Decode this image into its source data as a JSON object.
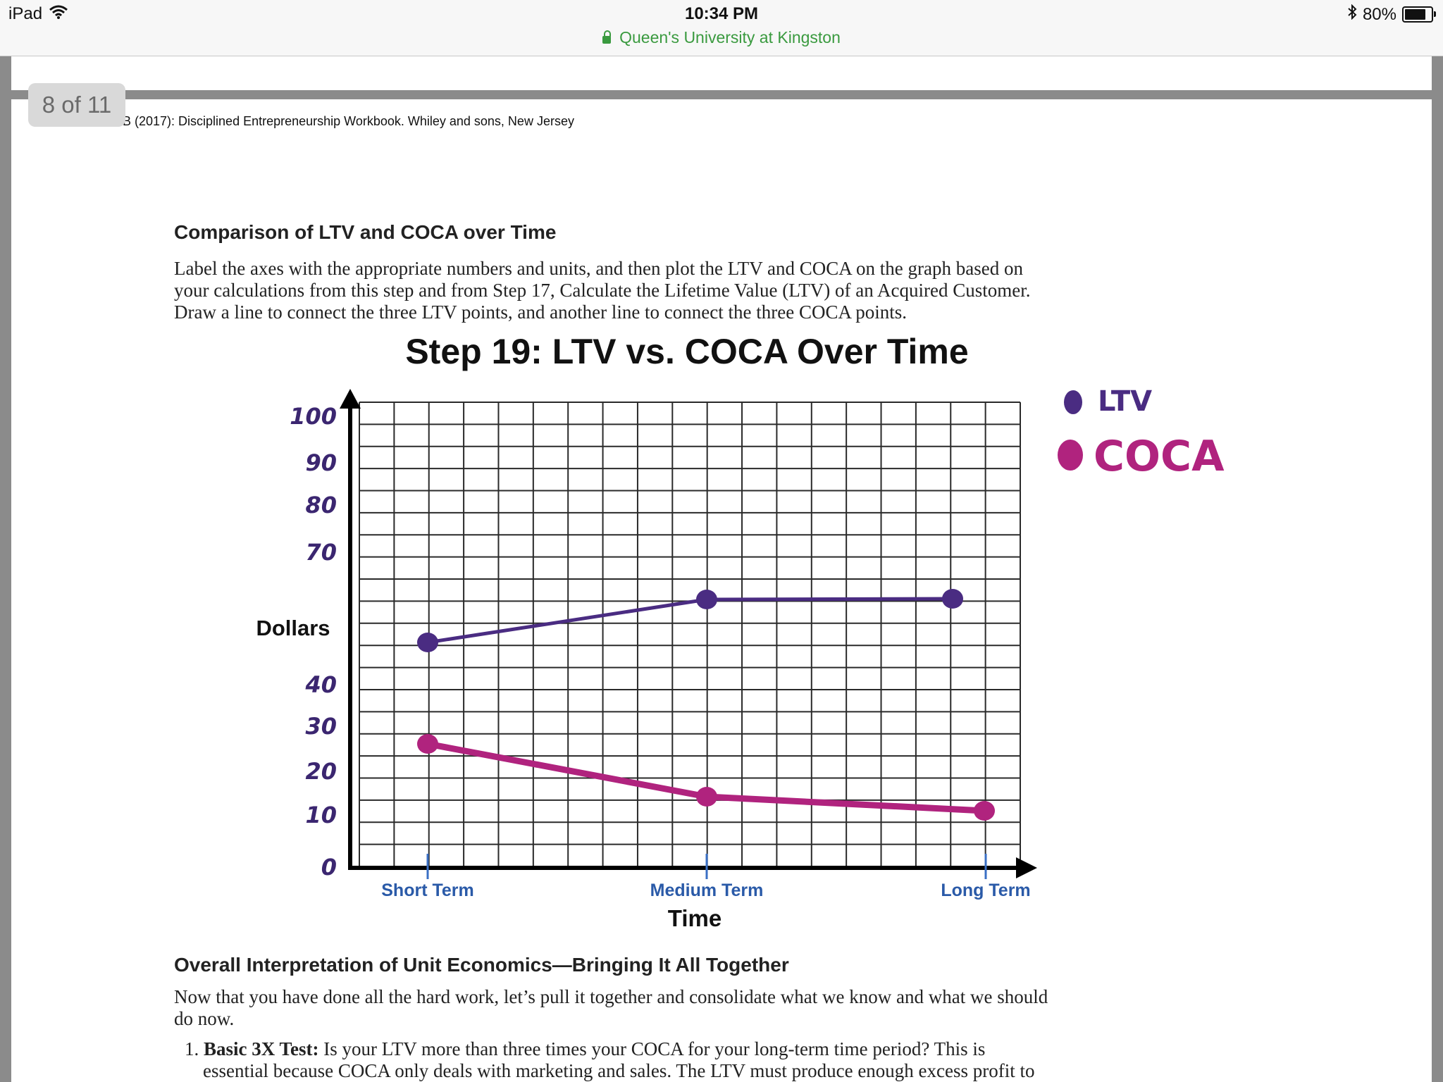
{
  "status_bar": {
    "device": "iPad",
    "time": "10:34 PM",
    "site": "Queen's University at Kingston",
    "battery": "80%",
    "battery_level": 0.8
  },
  "viewer": {
    "page_indicator": "8 of 11"
  },
  "document": {
    "citation": "B (2017): Disciplined Entrepreneurship Workbook. Whiley and sons, New Jersey",
    "section1_heading": "Comparison of LTV and COCA over Time",
    "section1_lines": [
      "Label the axes with the appropriate numbers and units, and then plot the LTV and COCA on the graph based on",
      "your calculations from this step and from Step 17, Calculate the Lifetime Value (LTV) of an Acquired Customer.",
      "Draw a line to connect the three LTV points, and another line to connect the three COCA points."
    ],
    "section2_heading": "Overall Interpretation of Unit Economics—Bringing It All Together",
    "section2_lines": [
      "Now that you have done all the hard work, let’s pull it together and consolidate what we know and what we should",
      "do now."
    ],
    "list_item_1_number": "1.",
    "list_item_1_label": "Basic 3X Test:",
    "list_item_1_line1": " Is your LTV more than three times your COCA for your long-term time period? This is",
    "list_item_1_line2": "essential because COCA only deals with marketing and sales. The LTV must produce enough excess profit to"
  },
  "chart_data": {
    "type": "line",
    "title": "Step 19: LTV vs. COCA Over Time",
    "xlabel": "Time",
    "ylabel": "Dollars",
    "categories": [
      "Short Term",
      "Medium Term",
      "Long Term"
    ],
    "handwritten_y_ticks": [
      "100",
      "90",
      "80",
      "70",
      "40",
      "30",
      "20",
      "10",
      "0"
    ],
    "series": [
      {
        "name": "LTV",
        "color": "#4a2c82",
        "values": [
          54,
          63,
          63
        ]
      },
      {
        "name": "COCA",
        "color": "#b0237e",
        "values": [
          28,
          16,
          12
        ]
      }
    ],
    "legend": [
      "LTV",
      "COCA"
    ],
    "legend_position": "top-right",
    "grid": true
  }
}
